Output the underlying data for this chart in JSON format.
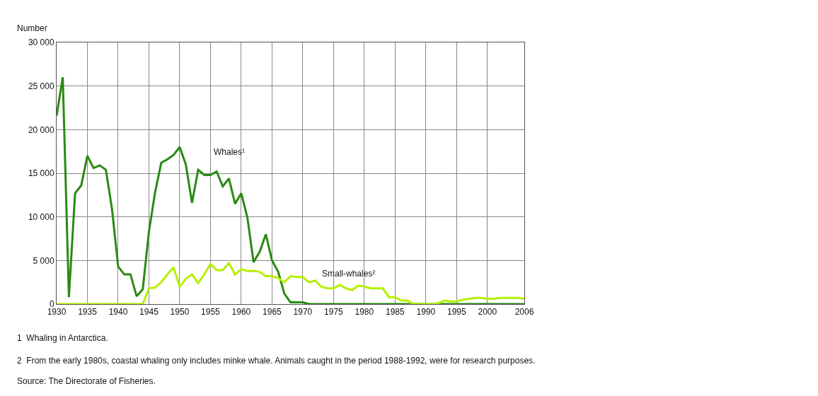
{
  "chart_data": {
    "type": "line",
    "ylabel": "Number",
    "x": [
      1930,
      1931,
      1932,
      1933,
      1934,
      1935,
      1936,
      1937,
      1938,
      1939,
      1940,
      1941,
      1942,
      1943,
      1944,
      1945,
      1946,
      1947,
      1948,
      1949,
      1950,
      1951,
      1952,
      1953,
      1954,
      1955,
      1956,
      1957,
      1958,
      1959,
      1960,
      1961,
      1962,
      1963,
      1964,
      1965,
      1966,
      1967,
      1968,
      1969,
      1970,
      1971,
      1972,
      1973,
      1974,
      1975,
      1976,
      1977,
      1978,
      1979,
      1980,
      1981,
      1982,
      1983,
      1984,
      1985,
      1986,
      1987,
      1988,
      1989,
      1990,
      1991,
      1992,
      1993,
      1994,
      1995,
      1996,
      1997,
      1998,
      1999,
      2000,
      2001,
      2002,
      2003,
      2004,
      2005,
      2006
    ],
    "series": [
      {
        "color": "#2a8a14",
        "values": [
          21600,
          26000,
          800,
          12700,
          13600,
          17000,
          15600,
          15900,
          15400,
          10900,
          4300,
          3400,
          3400,
          900,
          1700,
          8300,
          12800,
          16200,
          16600,
          17100,
          18000,
          16000,
          11600,
          15400,
          14800,
          14800,
          15200,
          13500,
          14400,
          11500,
          12700,
          9900,
          4800,
          6000,
          8000,
          5000,
          3700,
          1200,
          200,
          200,
          200,
          0,
          0,
          0,
          0,
          0,
          0,
          0,
          0,
          0,
          0,
          0,
          0,
          0,
          0,
          0,
          0,
          0,
          0,
          0,
          0,
          0,
          0,
          0,
          0,
          0,
          0,
          0,
          0,
          0,
          0,
          0,
          0,
          0,
          0,
          0,
          0
        ]
      },
      {
        "color": "#b5f000",
        "values": [
          0,
          0,
          0,
          0,
          0,
          0,
          0,
          0,
          0,
          0,
          0,
          0,
          0,
          0,
          0,
          1800,
          1900,
          2500,
          3400,
          4200,
          2000,
          2900,
          3400,
          2400,
          3400,
          4600,
          3900,
          3900,
          4700,
          3400,
          4000,
          3800,
          3800,
          3700,
          3200,
          3200,
          3000,
          2500,
          3200,
          3100,
          3100,
          2500,
          2700,
          2000,
          1800,
          1800,
          2200,
          1800,
          1600,
          2100,
          2000,
          1800,
          1800,
          1800,
          800,
          800,
          400,
          400,
          0,
          0,
          0,
          0,
          100,
          400,
          300,
          300,
          500,
          600,
          700,
          700,
          600,
          600,
          700,
          700,
          700,
          700,
          600
        ]
      }
    ],
    "xlim": [
      1930,
      2006
    ],
    "xticks": [
      1930,
      1935,
      1940,
      1945,
      1950,
      1955,
      1960,
      1965,
      1970,
      1975,
      1980,
      1985,
      1990,
      1995,
      2000,
      2006
    ],
    "ylim": [
      0,
      30000
    ],
    "yticks": [
      0,
      {
        "value": 5000,
        "label": "5 000"
      },
      {
        "value": 10000,
        "label": "10 000"
      },
      {
        "value": 15000,
        "label": "15 000"
      },
      {
        "value": 20000,
        "label": "20 000"
      },
      {
        "value": 25000,
        "label": "25 000"
      },
      {
        "value": 30000,
        "label": "30 000"
      }
    ],
    "grid": true,
    "marker": "none",
    "line_style": "solid",
    "annotations": [
      "Whales¹",
      "Small-whales²",
      "1  Whaling in Antarctica.",
      "2  From the early 1980s, coastal whaling only includes minke whale. Animals caught in the period 1988-1992, were for research purposes.",
      "Source: The Directorate of Fisheries."
    ]
  }
}
